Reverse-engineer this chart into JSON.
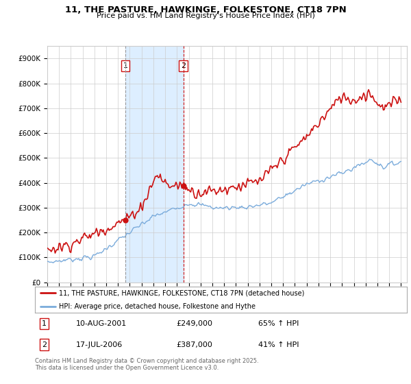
{
  "title": "11, THE PASTURE, HAWKINGE, FOLKESTONE, CT18 7PN",
  "subtitle": "Price paid vs. HM Land Registry's House Price Index (HPI)",
  "ylim": [
    0,
    950000
  ],
  "yticks": [
    0,
    100000,
    200000,
    300000,
    400000,
    500000,
    600000,
    700000,
    800000,
    900000
  ],
  "ytick_labels": [
    "£0",
    "£100K",
    "£200K",
    "£300K",
    "£400K",
    "£500K",
    "£600K",
    "£700K",
    "£800K",
    "£900K"
  ],
  "purchase1_date": 2001.62,
  "purchase1_price": 249000,
  "purchase1_label": "1",
  "purchase1_date_str": "10-AUG-2001",
  "purchase1_price_str": "£249,000",
  "purchase1_hpi_str": "65% ↑ HPI",
  "purchase2_date": 2006.54,
  "purchase2_price": 387000,
  "purchase2_label": "2",
  "purchase2_date_str": "17-JUL-2006",
  "purchase2_price_str": "£387,000",
  "purchase2_hpi_str": "41% ↑ HPI",
  "line1_color": "#cc1111",
  "line2_color": "#7aabdb",
  "shade1_color": "#ddeeff",
  "vline1_color": "#999999",
  "vline2_color": "#cc1111",
  "legend1_label": "11, THE PASTURE, HAWKINGE, FOLKESTONE, CT18 7PN (detached house)",
  "legend2_label": "HPI: Average price, detached house, Folkestone and Hythe",
  "footer": "Contains HM Land Registry data © Crown copyright and database right 2025.\nThis data is licensed under the Open Government Licence v3.0.",
  "background_color": "#ffffff",
  "grid_color": "#cccccc",
  "label_box_color": "#cc1111",
  "xlim_start": 1995.0,
  "xlim_end": 2025.5
}
